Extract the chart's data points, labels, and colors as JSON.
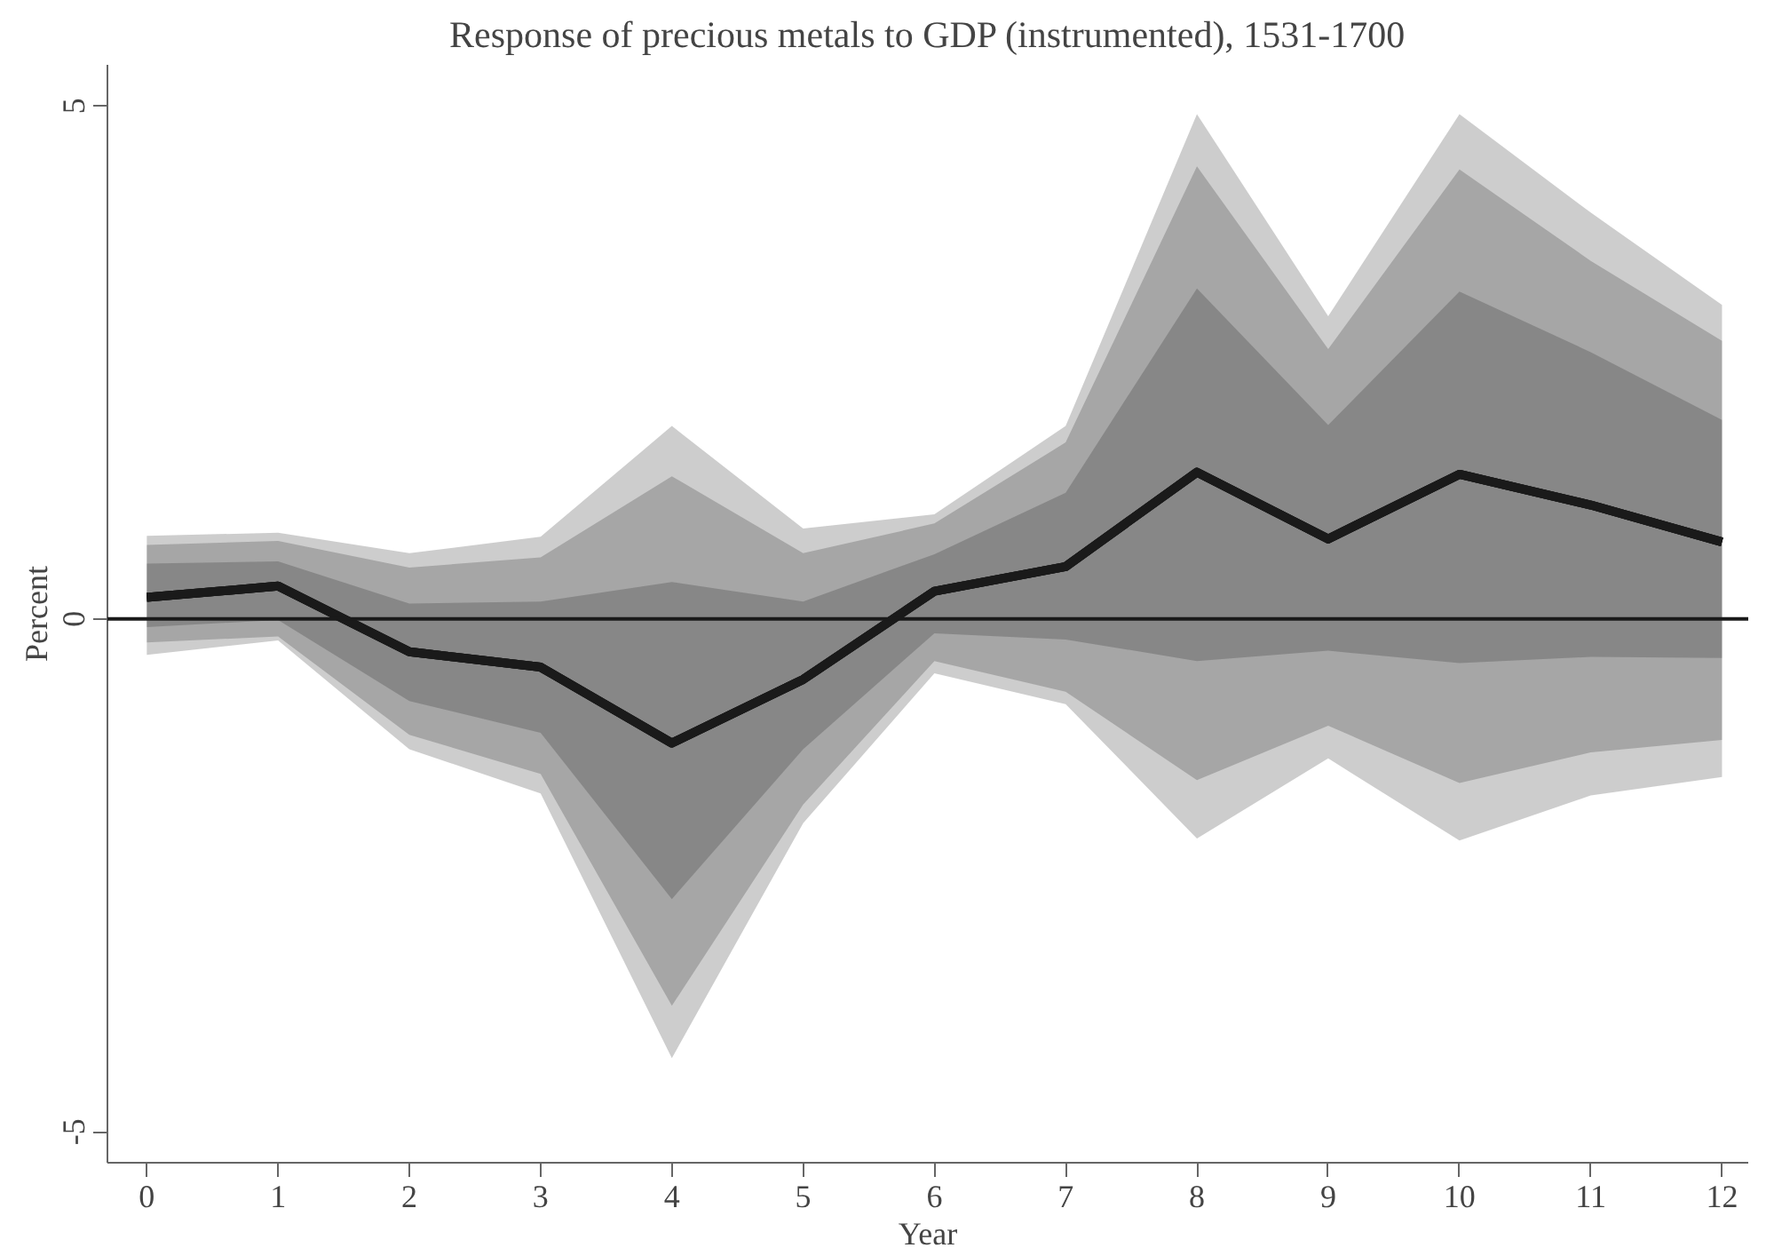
{
  "chart_data": {
    "type": "line",
    "title": "Response of precious metals to GDP (instrumented), 1531-1700",
    "xlabel": "Year",
    "ylabel": "Percent",
    "x": [
      0,
      1,
      2,
      3,
      4,
      5,
      6,
      7,
      8,
      9,
      10,
      11,
      12
    ],
    "series": [
      {
        "color": "#1a1a1a",
        "values": [
          0.21,
          0.32,
          -0.32,
          -0.47,
          -1.21,
          -0.59,
          0.27,
          0.51,
          1.43,
          0.78,
          1.41,
          1.11,
          0.75
        ],
        "lower": [
          -0.35,
          -0.21,
          -1.27,
          -1.7,
          -4.28,
          -1.99,
          -0.53,
          -0.83,
          -2.14,
          -1.36,
          -2.16,
          -1.72,
          -1.54
        ],
        "upper": [
          0.81,
          0.84,
          0.64,
          0.8,
          1.88,
          0.88,
          1.02,
          1.88,
          4.92,
          2.95,
          4.92,
          3.96,
          3.06
        ]
      },
      {
        "color": "#1a1a1a",
        "values": [
          0.21,
          0.32,
          -0.32,
          -0.47,
          -1.21,
          -0.59,
          0.27,
          0.51,
          1.43,
          0.78,
          1.41,
          1.11,
          0.75
        ],
        "lower": [
          -0.23,
          -0.17,
          -1.13,
          -1.51,
          -3.77,
          -1.81,
          -0.41,
          -0.71,
          -1.57,
          -1.04,
          -1.6,
          -1.3,
          -1.18
        ],
        "upper": [
          0.72,
          0.76,
          0.5,
          0.6,
          1.39,
          0.64,
          0.93,
          1.72,
          4.41,
          2.63,
          4.38,
          3.49,
          2.71
        ]
      },
      {
        "color": "#1a1a1a",
        "values": [
          0.21,
          0.32,
          -0.32,
          -0.47,
          -1.21,
          -0.59,
          0.27,
          0.51,
          1.43,
          0.78,
          1.41,
          1.11,
          0.75
        ],
        "lower": [
          -0.08,
          -0.01,
          -0.8,
          -1.11,
          -2.73,
          -1.27,
          -0.14,
          -0.2,
          -0.41,
          -0.31,
          -0.43,
          -0.37,
          -0.38
        ],
        "upper": [
          0.54,
          0.56,
          0.15,
          0.17,
          0.36,
          0.17,
          0.63,
          1.23,
          3.22,
          1.89,
          3.19,
          2.6,
          1.94
        ]
      }
    ],
    "ref_lines": [
      {
        "axis": "y",
        "value": 0,
        "label": null,
        "color": "#1a1a1a"
      }
    ],
    "xlim": [
      -0.3,
      12.2
    ],
    "xticks": [
      0,
      1,
      2,
      3,
      4,
      5,
      6,
      7,
      8,
      9,
      10,
      11,
      12
    ],
    "ylim": [
      -5.3,
      5.4
    ],
    "yticks": [
      -5,
      0,
      5
    ],
    "grid": false
  }
}
